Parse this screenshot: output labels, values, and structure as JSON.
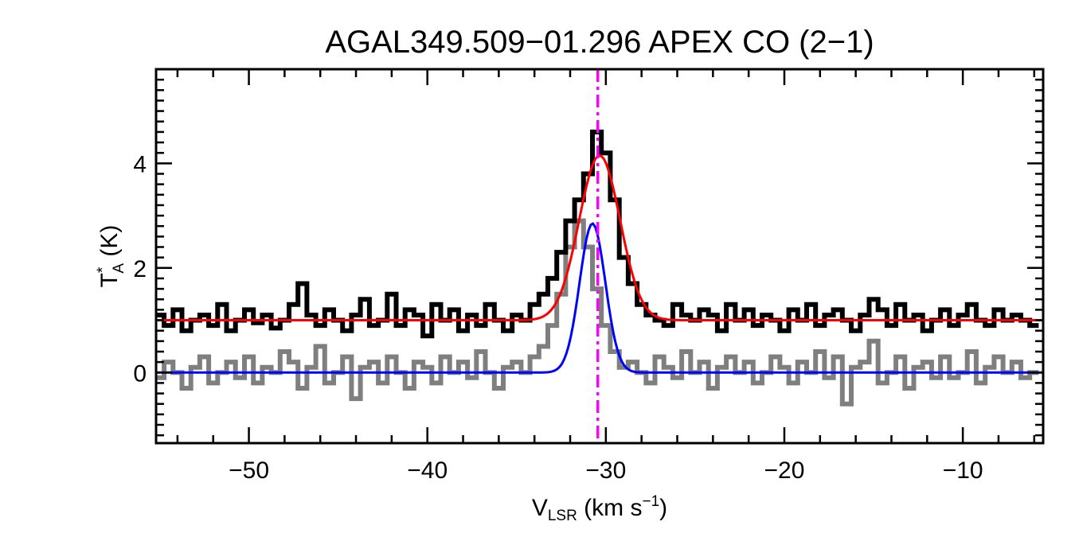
{
  "chart_data": {
    "type": "line",
    "title": "AGAL349.509−01.296  APEX CO (2−1)",
    "xlabel": {
      "main": "V",
      "sub": "LSR",
      "rest": " (km s",
      "sup": "−1",
      "close": ")"
    },
    "ylabel": {
      "main": "T",
      "sup": "*",
      "sub": "A",
      "rest": " (K)"
    },
    "xlim": [
      -55.2,
      -5.5
    ],
    "ylim": [
      -1.35,
      5.8
    ],
    "xticks": [
      -50,
      -40,
      -30,
      -20,
      -10
    ],
    "xtick_labels": [
      "−50",
      "−40",
      "−30",
      "−20",
      "−10"
    ],
    "yticks": [
      0,
      2,
      4
    ],
    "ytick_labels": [
      "0",
      "2",
      "4"
    ],
    "vline": {
      "x": -30.45,
      "color": "#ff00ff",
      "style": "dash-dot"
    },
    "series": [
      {
        "style": "step",
        "color": "#000000",
        "x": [
          -55.0,
          -54.5,
          -54.0,
          -53.5,
          -53.0,
          -52.5,
          -52.0,
          -51.5,
          -51.0,
          -50.5,
          -50.0,
          -49.5,
          -49.0,
          -48.5,
          -48.0,
          -47.5,
          -47.0,
          -46.5,
          -46.0,
          -45.5,
          -45.0,
          -44.5,
          -44.0,
          -43.5,
          -43.0,
          -42.5,
          -42.0,
          -41.5,
          -41.0,
          -40.5,
          -40.0,
          -39.5,
          -39.0,
          -38.5,
          -38.0,
          -37.5,
          -37.0,
          -36.5,
          -36.0,
          -35.5,
          -35.0,
          -34.5,
          -34.0,
          -33.5,
          -33.0,
          -32.5,
          -32.0,
          -31.5,
          -31.0,
          -30.5,
          -30.0,
          -29.5,
          -29.0,
          -28.5,
          -28.0,
          -27.5,
          -27.0,
          -26.5,
          -26.0,
          -25.5,
          -25.0,
          -24.5,
          -24.0,
          -23.5,
          -23.0,
          -22.5,
          -22.0,
          -21.5,
          -21.0,
          -20.5,
          -20.0,
          -19.5,
          -19.0,
          -18.5,
          -18.0,
          -17.5,
          -17.0,
          -16.5,
          -16.0,
          -15.5,
          -15.0,
          -14.5,
          -14.0,
          -13.5,
          -13.0,
          -12.5,
          -12.0,
          -11.5,
          -11.0,
          -10.5,
          -10.0,
          -9.5,
          -9.0,
          -8.5,
          -8.0,
          -7.5,
          -7.0,
          -6.5,
          -6.0
        ],
        "y": [
          1.1,
          0.9,
          1.2,
          0.8,
          1.0,
          1.1,
          0.9,
          1.3,
          0.8,
          1.0,
          1.2,
          0.95,
          1.1,
          0.85,
          1.0,
          1.3,
          1.7,
          1.1,
          0.9,
          1.2,
          1.0,
          0.8,
          1.1,
          1.4,
          0.9,
          1.0,
          1.5,
          0.9,
          1.2,
          1.1,
          0.7,
          1.3,
          1.0,
          1.2,
          0.8,
          1.1,
          0.9,
          1.3,
          1.0,
          0.8,
          1.1,
          1.0,
          1.3,
          1.5,
          1.8,
          2.3,
          2.9,
          3.3,
          3.8,
          4.6,
          4.2,
          3.3,
          2.2,
          1.7,
          1.3,
          1.1,
          1.0,
          0.9,
          1.3,
          1.1,
          1.0,
          1.2,
          1.1,
          0.8,
          1.3,
          1.0,
          1.2,
          0.9,
          1.1,
          1.0,
          0.8,
          1.2,
          1.0,
          1.3,
          0.9,
          1.1,
          1.2,
          1.0,
          0.8,
          1.1,
          1.4,
          1.2,
          0.9,
          1.3,
          1.0,
          1.1,
          0.8,
          1.0,
          1.2,
          0.9,
          1.1,
          1.3,
          1.0,
          0.9,
          1.2,
          1.0,
          1.1,
          1.0,
          0.9
        ]
      },
      {
        "style": "step",
        "color": "#7f7f7f",
        "x": [
          -55.0,
          -54.5,
          -54.0,
          -53.5,
          -53.0,
          -52.5,
          -52.0,
          -51.5,
          -51.0,
          -50.5,
          -50.0,
          -49.5,
          -49.0,
          -48.5,
          -48.0,
          -47.5,
          -47.0,
          -46.5,
          -46.0,
          -45.5,
          -45.0,
          -44.5,
          -44.0,
          -43.5,
          -43.0,
          -42.5,
          -42.0,
          -41.5,
          -41.0,
          -40.5,
          -40.0,
          -39.5,
          -39.0,
          -38.5,
          -38.0,
          -37.5,
          -37.0,
          -36.5,
          -36.0,
          -35.5,
          -35.0,
          -34.5,
          -34.0,
          -33.5,
          -33.0,
          -32.5,
          -32.0,
          -31.5,
          -31.0,
          -30.5,
          -30.0,
          -29.5,
          -29.0,
          -28.5,
          -28.0,
          -27.5,
          -27.0,
          -26.5,
          -26.0,
          -25.5,
          -25.0,
          -24.5,
          -24.0,
          -23.5,
          -23.0,
          -22.5,
          -22.0,
          -21.5,
          -21.0,
          -20.5,
          -20.0,
          -19.5,
          -19.0,
          -18.5,
          -18.0,
          -17.5,
          -17.0,
          -16.5,
          -16.0,
          -15.5,
          -15.0,
          -14.5,
          -14.0,
          -13.5,
          -13.0,
          -12.5,
          -12.0,
          -11.5,
          -11.0,
          -10.5,
          -10.0,
          -9.5,
          -9.0,
          -8.5,
          -8.0,
          -7.5,
          -7.0,
          -6.5,
          -6.0
        ],
        "y": [
          -0.1,
          0.2,
          0.0,
          -0.3,
          0.1,
          0.3,
          -0.2,
          0.0,
          0.2,
          -0.1,
          0.3,
          -0.2,
          0.1,
          0.0,
          0.4,
          0.2,
          -0.3,
          0.1,
          0.5,
          -0.2,
          0.0,
          0.3,
          -0.5,
          0.1,
          0.2,
          -0.2,
          0.3,
          0.0,
          -0.3,
          0.2,
          0.1,
          -0.2,
          0.3,
          0.0,
          0.2,
          -0.1,
          0.4,
          0.0,
          -0.3,
          0.1,
          0.2,
          0.0,
          0.3,
          0.5,
          0.9,
          1.5,
          2.4,
          2.9,
          2.4,
          1.6,
          0.9,
          0.4,
          0.1,
          0.2,
          0.0,
          -0.2,
          0.3,
          0.1,
          -0.1,
          0.4,
          0.0,
          0.2,
          -0.3,
          0.1,
          0.3,
          0.0,
          0.2,
          -0.2,
          0.0,
          0.3,
          0.1,
          -0.2,
          0.2,
          0.0,
          0.4,
          -0.1,
          0.3,
          -0.6,
          0.1,
          0.2,
          0.6,
          -0.2,
          0.0,
          0.3,
          -0.3,
          0.1,
          0.2,
          -0.1,
          0.3,
          -0.1,
          0.0,
          0.4,
          -0.2,
          0.1,
          0.3,
          0.0,
          0.2,
          -0.1,
          0.0
        ]
      },
      {
        "style": "gaussian",
        "color": "#ff0000",
        "baseline": 1.0,
        "amplitude": 3.15,
        "center": -30.35,
        "sigma": 1.15
      },
      {
        "style": "gaussian",
        "color": "#0000ff",
        "baseline": 0.0,
        "amplitude": 2.85,
        "center": -30.75,
        "sigma": 0.72
      }
    ]
  }
}
